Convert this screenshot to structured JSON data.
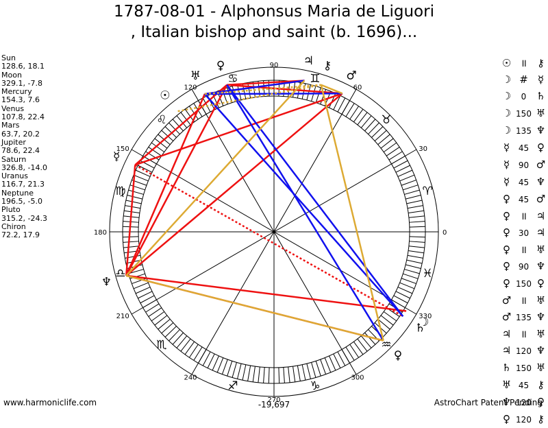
{
  "title_line1": "1787-08-01 - Alphonsus Maria de Liguori",
  "title_line2": ", Italian bishop and saint (b. 1696)...",
  "planets": [
    {
      "name": "Sun",
      "values": "128.6, 18.1",
      "lon": 128.6,
      "glyph": "☉"
    },
    {
      "name": "Moon",
      "values": "329.1, -7.8",
      "lon": 329.1,
      "glyph": "☽"
    },
    {
      "name": "Mercury",
      "values": "154.3, 7.6",
      "lon": 154.3,
      "glyph": "☿"
    },
    {
      "name": "Venus",
      "values": "107.8, 22.4",
      "lon": 107.8,
      "glyph": "♀"
    },
    {
      "name": "Mars",
      "values": "63.7, 20.2",
      "lon": 63.7,
      "glyph": "♂"
    },
    {
      "name": "Jupiter",
      "values": "78.6, 22.4",
      "lon": 78.6,
      "glyph": "♃"
    },
    {
      "name": "Saturn",
      "values": "326.8, -14.0",
      "lon": 326.8,
      "glyph": "♄"
    },
    {
      "name": "Uranus",
      "values": "116.7, 21.3",
      "lon": 116.7,
      "glyph": "♅"
    },
    {
      "name": "Neptune",
      "values": "196.5, -5.0",
      "lon": 196.5,
      "glyph": "♆"
    },
    {
      "name": "Pluto",
      "values": "315.2, -24.3",
      "lon": 315.2,
      "glyph": "♀"
    },
    {
      "name": "Chiron",
      "values": "72.2, 17.9",
      "lon": 72.2,
      "glyph": "⚷"
    }
  ],
  "aspects": [
    {
      "p1": "☉",
      "sym": "॥",
      "p2": "⚷"
    },
    {
      "p1": "☽",
      "sym": "#",
      "p2": "☿"
    },
    {
      "p1": "☽",
      "sym": "0",
      "p2": "♄"
    },
    {
      "p1": "☽",
      "sym": "150",
      "p2": "♅"
    },
    {
      "p1": "☽",
      "sym": "135",
      "p2": "♆"
    },
    {
      "p1": "☿",
      "sym": "45",
      "p2": "♀"
    },
    {
      "p1": "☿",
      "sym": "90",
      "p2": "♂"
    },
    {
      "p1": "☿",
      "sym": "45",
      "p2": "♆"
    },
    {
      "p1": "♀",
      "sym": "45",
      "p2": "♂"
    },
    {
      "p1": "♀",
      "sym": "॥",
      "p2": "♃"
    },
    {
      "p1": "♀",
      "sym": "30",
      "p2": "♃"
    },
    {
      "p1": "♀",
      "sym": "॥",
      "p2": "♅"
    },
    {
      "p1": "♀",
      "sym": "90",
      "p2": "♆"
    },
    {
      "p1": "♀",
      "sym": "150",
      "p2": "♀"
    },
    {
      "p1": "♂",
      "sym": "॥",
      "p2": "♅"
    },
    {
      "p1": "♂",
      "sym": "135",
      "p2": "♆"
    },
    {
      "p1": "♃",
      "sym": "॥",
      "p2": "♅"
    },
    {
      "p1": "♃",
      "sym": "120",
      "p2": "♆"
    },
    {
      "p1": "♄",
      "sym": "150",
      "p2": "♅"
    },
    {
      "p1": "♅",
      "sym": "45",
      "p2": "⚷"
    },
    {
      "p1": "♆",
      "sym": "120",
      "p2": "♀"
    },
    {
      "p1": "♀",
      "sym": "120",
      "p2": "⚷"
    }
  ],
  "wheel_labels": [
    "0",
    "30",
    "60",
    "90",
    "120",
    "150",
    "180",
    "210",
    "240",
    "270",
    "300",
    "330"
  ],
  "zodiac_signs": [
    "♈",
    "♉",
    "♊",
    "♋",
    "♌",
    "♍",
    "♎",
    "♏",
    "♐",
    "♑",
    "♒",
    "♓"
  ],
  "chart_lines": [
    {
      "from": 2,
      "to": 3,
      "color": "#ee1111",
      "style": "solid"
    },
    {
      "from": 2,
      "to": 4,
      "color": "#ee1111",
      "style": "solid"
    },
    {
      "from": 2,
      "to": 8,
      "color": "#ee1111",
      "style": "solid"
    },
    {
      "from": 3,
      "to": 4,
      "color": "#ee1111",
      "style": "solid"
    },
    {
      "from": 3,
      "to": 8,
      "color": "#ee1111",
      "style": "solid"
    },
    {
      "from": 4,
      "to": 8,
      "color": "#ee1111",
      "style": "solid"
    },
    {
      "from": 1,
      "to": 8,
      "color": "#ee1111",
      "style": "solid"
    },
    {
      "from": 8,
      "to": 9,
      "color": "#ee1111",
      "style": "solid"
    },
    {
      "from": 7,
      "to": 8,
      "color": "#ee1111",
      "style": "solid"
    },
    {
      "from": 3,
      "to": 5,
      "color": "#ee1111",
      "style": "solid"
    },
    {
      "from": 5,
      "to": 7,
      "color": "#ee1111",
      "style": "solid"
    },
    {
      "from": 2,
      "to": 6,
      "color": "#ee1111",
      "style": "dotted"
    },
    {
      "from": 3,
      "to": 9,
      "color": "#1111ee",
      "style": "solid"
    },
    {
      "from": 3,
      "to": 6,
      "color": "#1111ee",
      "style": "solid"
    },
    {
      "from": 7,
      "to": 6,
      "color": "#1111ee",
      "style": "solid"
    },
    {
      "from": 7,
      "to": 5,
      "color": "#1111ee",
      "style": "solid"
    },
    {
      "from": 4,
      "to": 7,
      "color": "#1111ee",
      "style": "solid"
    },
    {
      "from": 4,
      "to": 10,
      "color": "#ddaa33",
      "style": "solid"
    },
    {
      "from": 5,
      "to": 8,
      "color": "#ddaa33",
      "style": "solid"
    },
    {
      "from": 8,
      "to": 9,
      "color": "#ddaa33",
      "style": "solid"
    },
    {
      "from": 9,
      "to": 10,
      "color": "#ddaa33",
      "style": "solid"
    },
    {
      "from": 7,
      "to": 10,
      "color": "#ddaa33",
      "style": "dotted"
    },
    {
      "from": 0,
      "to": 10,
      "color": "#ddaa33",
      "style": "dotted"
    }
  ],
  "footer_left": "www.harmoniclife.com",
  "footer_center": "-19,697",
  "footer_right": "AstroChart Patent Pending"
}
